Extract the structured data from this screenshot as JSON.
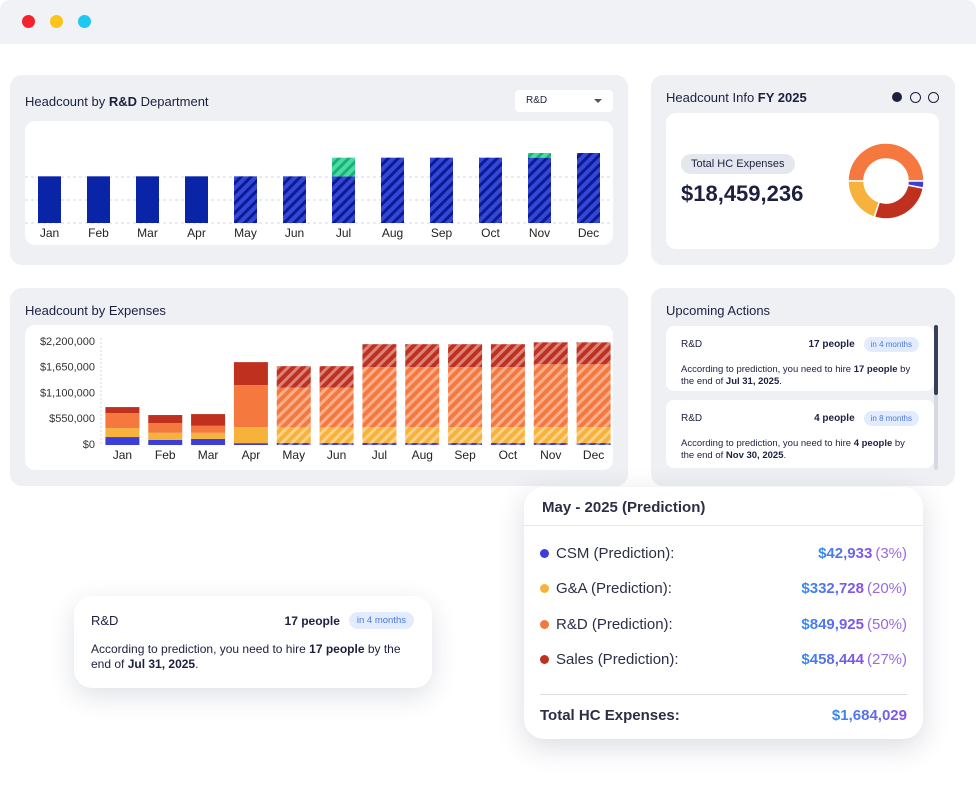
{
  "chart_data": [
    {
      "type": "bar",
      "stacked": true,
      "title_parts": [
        "Headcount by ",
        "R&D",
        " Department"
      ],
      "dropdown": "R&D",
      "categories": [
        "Jan",
        "Feb",
        "Mar",
        "Apr",
        "May",
        "Jun",
        "Jul",
        "Aug",
        "Sep",
        "Oct",
        "Nov",
        "Dec"
      ],
      "series": [
        {
          "color": "#0a24a8",
          "pattern": "solid",
          "values": [
            10,
            10,
            10,
            10,
            null,
            null,
            null,
            null,
            null,
            null,
            null,
            null
          ]
        },
        {
          "color": "#3447d8",
          "stripe_color": "#0b1b92",
          "pattern": "hatched",
          "values": [
            null,
            null,
            null,
            null,
            10,
            10,
            10,
            14,
            14,
            14,
            14,
            15
          ]
        },
        {
          "color": "#46dea0",
          "stripe_color": "#1fae78",
          "pattern": "hatched",
          "values": [
            null,
            null,
            null,
            null,
            null,
            null,
            4,
            null,
            null,
            null,
            1,
            null
          ]
        }
      ]
    },
    {
      "type": "bar",
      "stacked": true,
      "title": "Headcount by Expenses",
      "categories": [
        "Jan",
        "Feb",
        "Mar",
        "Apr",
        "May",
        "Jun",
        "Jul",
        "Aug",
        "Sep",
        "Oct",
        "Nov",
        "Dec"
      ],
      "hatched": [
        false,
        false,
        false,
        false,
        true,
        true,
        true,
        true,
        true,
        true,
        true,
        true
      ],
      "series": [
        {
          "color": "#3b3fd8",
          "values": [
            170000,
            110000,
            130000,
            40000,
            42933,
            43000,
            43000,
            43000,
            43000,
            43000,
            43000,
            43000
          ]
        },
        {
          "color": "#f7b23b",
          "values": [
            190000,
            150000,
            130000,
            340000,
            332728,
            333000,
            340000,
            340000,
            340000,
            340000,
            340000,
            340000
          ]
        },
        {
          "color": "#f5793f",
          "values": [
            320000,
            210000,
            150000,
            900000,
            849925,
            850000,
            1280000,
            1280000,
            1280000,
            1280000,
            1340000,
            1340000
          ]
        },
        {
          "color": "#c0301f",
          "values": [
            130000,
            170000,
            250000,
            490000,
            458444,
            458000,
            490000,
            490000,
            490000,
            490000,
            470000,
            470000
          ]
        }
      ],
      "ylim": [
        0,
        2200000
      ],
      "yticks": [
        {
          "value": 0,
          "label": "$0"
        },
        {
          "value": 550000,
          "label": "$550,000"
        },
        {
          "value": 1100000,
          "label": "$1,100,000"
        },
        {
          "value": 1650000,
          "label": "$1,650,000"
        },
        {
          "value": 2200000,
          "label": "$2,200,000"
        }
      ]
    },
    {
      "type": "pie",
      "donut": true,
      "values": [
        50,
        3,
        27,
        20
      ],
      "colors": [
        "#f5793f",
        "#3b3fd8",
        "#c0301f",
        "#f7b23b"
      ]
    }
  ],
  "hc_info": {
    "title_parts": [
      "Headcount Info ",
      "FY 2025"
    ],
    "badge": "Total HC Expenses",
    "amount": "$18,459,236"
  },
  "upcoming": {
    "title": "Upcoming Actions",
    "cards": [
      {
        "dept": "R&D",
        "count": "17 people",
        "due": "in 4 months",
        "message": [
          "According to prediction, you need to hire ",
          "17 people",
          " by the end of ",
          "Jul 31, 2025",
          "."
        ]
      },
      {
        "dept": "R&D",
        "count": "4 people",
        "due": "in 8 months",
        "message": [
          "According to prediction, you need to hire ",
          "4 people",
          " by the end of ",
          "Nov 30, 2025",
          "."
        ]
      }
    ]
  },
  "highlight_card": {
    "dept": "R&D",
    "count": "17 people",
    "due": "in 4 months",
    "message": [
      "According to prediction, you need to hire ",
      "17 people",
      " by the end of ",
      "Jul 31, 2025",
      "."
    ]
  },
  "tooltip": {
    "title": "May - 2025 (Prediction)",
    "rows": [
      {
        "label": "CSM (Prediction):",
        "value": "$42,933",
        "share": "(3%)",
        "color": "#3b3fd8"
      },
      {
        "label": "G&A (Prediction):",
        "value": "$332,728",
        "share": "(20%)",
        "color": "#f7b23b"
      },
      {
        "label": "R&D (Prediction):",
        "value": "$849,925",
        "share": "(50%)",
        "color": "#f5793f"
      },
      {
        "label": "Sales (Prediction):",
        "value": "$458,444",
        "share": "(27%)",
        "color": "#c0301f"
      }
    ],
    "total_label": "Total HC Expenses:",
    "total_value": "$1,684,029"
  }
}
